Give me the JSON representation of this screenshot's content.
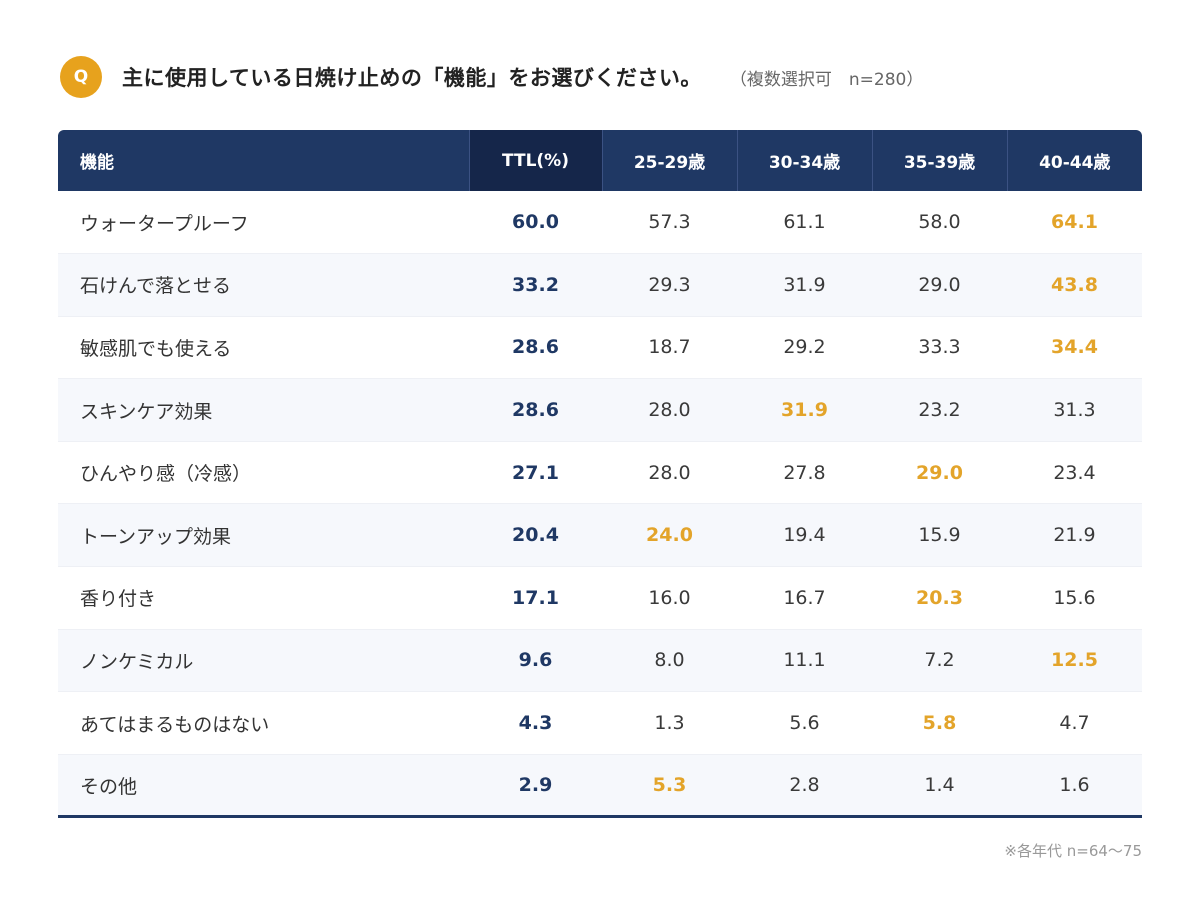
{
  "question": {
    "badge": "Q",
    "text": "主に使用している日焼け止めの「機能」をお選びください。",
    "note": "（複数選択可　n=280）"
  },
  "chart_data": {
    "type": "table",
    "columns": [
      "機能",
      "TTL(%)",
      "25-29歳",
      "30-34歳",
      "35-39歳",
      "40-44歳"
    ],
    "rows": [
      {
        "label": "ウォータープルーフ",
        "values": [
          "60.0",
          "57.3",
          "61.1",
          "58.0",
          "64.1"
        ],
        "highlight_col": 4
      },
      {
        "label": "石けんで落とせる",
        "values": [
          "33.2",
          "29.3",
          "31.9",
          "29.0",
          "43.8"
        ],
        "highlight_col": 4
      },
      {
        "label": "敏感肌でも使える",
        "values": [
          "28.6",
          "18.7",
          "29.2",
          "33.3",
          "34.4"
        ],
        "highlight_col": 4
      },
      {
        "label": "スキンケア効果",
        "values": [
          "28.6",
          "28.0",
          "31.9",
          "23.2",
          "31.3"
        ],
        "highlight_col": 2
      },
      {
        "label": "ひんやり感（冷感）",
        "values": [
          "27.1",
          "28.0",
          "27.8",
          "29.0",
          "23.4"
        ],
        "highlight_col": 3
      },
      {
        "label": "トーンアップ効果",
        "values": [
          "20.4",
          "24.0",
          "19.4",
          "15.9",
          "21.9"
        ],
        "highlight_col": 1
      },
      {
        "label": "香り付き",
        "values": [
          "17.1",
          "16.0",
          "16.7",
          "20.3",
          "15.6"
        ],
        "highlight_col": 3
      },
      {
        "label": "ノンケミカル",
        "values": [
          "9.6",
          "8.0",
          "11.1",
          "7.2",
          "12.5"
        ],
        "highlight_col": 4
      },
      {
        "label": "あてはまるものはない",
        "values": [
          "4.3",
          "1.3",
          "5.6",
          "5.8",
          "4.7"
        ],
        "highlight_col": 3
      },
      {
        "label": "その他",
        "values": [
          "2.9",
          "5.3",
          "2.8",
          "1.4",
          "1.6"
        ],
        "highlight_col": 1
      }
    ],
    "colors": {
      "header": "#1f3864",
      "ttl_header": "#15264a",
      "ttl_value": "#1f3864",
      "highlight": "#e3a42a",
      "badge": "#e7a21d"
    }
  },
  "footnote": "※各年代 n=64〜75"
}
